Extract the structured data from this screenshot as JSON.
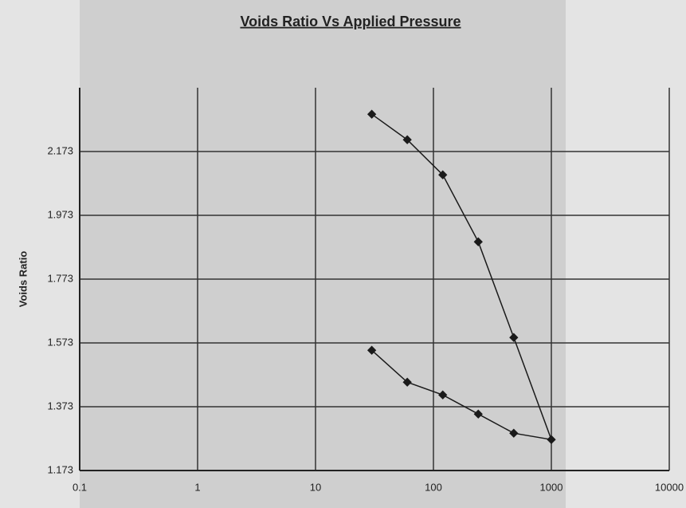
{
  "chart_data": {
    "type": "line",
    "title": "Voids Ratio Vs Applied Pressure",
    "y_label": "Voids Ratio",
    "x": [
      30,
      60,
      120,
      240,
      480,
      1000,
      480,
      240,
      120,
      60,
      30
    ],
    "values": [
      2.29,
      2.21,
      2.1,
      1.89,
      1.59,
      1.27,
      1.29,
      1.35,
      1.41,
      1.45,
      1.55
    ],
    "color": "#1a1a1a",
    "x_log": true,
    "grid": true,
    "xlim": [
      0.1,
      10000
    ],
    "xticks": [
      0.1,
      1,
      10,
      100,
      1000,
      10000
    ],
    "ylim": [
      1.173,
      2.373
    ],
    "yticks": [
      1.173,
      1.373,
      1.573,
      1.773,
      1.973,
      2.173
    ]
  }
}
